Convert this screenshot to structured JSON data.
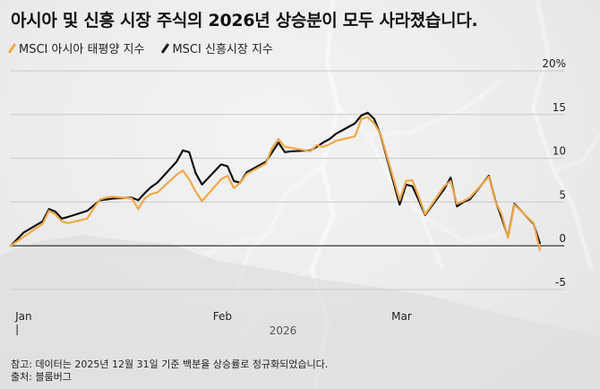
{
  "title": "아시아 및 신흥 시장 주식의 2026년 상승분이 모두 사라졌습니다.",
  "footer": {
    "note": "참고: 데이터는 2025년 12월 31일 기준 백분율 상승률로 정규화되었습니다.",
    "source": "출처: 블룸버그"
  },
  "chart_data": {
    "type": "line",
    "title": "아시아 및 신흥 시장 주식의 2026년 상승분이 모두 사라졌습니다.",
    "xlabel": "2026",
    "ylabel": "",
    "y_unit": "%",
    "ylim": [
      -5,
      20
    ],
    "yticks": [
      -5,
      0,
      5,
      10,
      15,
      20
    ],
    "ytick_labels": [
      "-5",
      "0",
      "5",
      "10",
      "15",
      "20%"
    ],
    "xlim": [
      "2025-12-31",
      "2026-03-25"
    ],
    "xticks": [
      {
        "date": "2026-01-01",
        "label": "Jan"
      },
      {
        "date": "2026-02-01",
        "label": "Feb"
      },
      {
        "date": "2026-03-01",
        "label": "Mar"
      }
    ],
    "x": [
      "2025-12-31",
      "2026-01-02",
      "2026-01-05",
      "2026-01-06",
      "2026-01-07",
      "2026-01-08",
      "2026-01-09",
      "2026-01-12",
      "2026-01-13",
      "2026-01-14",
      "2026-01-15",
      "2026-01-16",
      "2026-01-19",
      "2026-01-20",
      "2026-01-21",
      "2026-01-22",
      "2026-01-23",
      "2026-01-26",
      "2026-01-27",
      "2026-01-28",
      "2026-01-29",
      "2026-01-30",
      "2026-02-02",
      "2026-02-03",
      "2026-02-04",
      "2026-02-05",
      "2026-02-06",
      "2026-02-09",
      "2026-02-10",
      "2026-02-11",
      "2026-02-12",
      "2026-02-13",
      "2026-02-16",
      "2026-02-17",
      "2026-02-18",
      "2026-02-19",
      "2026-02-20",
      "2026-02-23",
      "2026-02-24",
      "2026-02-25",
      "2026-02-26",
      "2026-02-27",
      "2026-03-02",
      "2026-03-03",
      "2026-03-04",
      "2026-03-05",
      "2026-03-06",
      "2026-03-09",
      "2026-03-10",
      "2026-03-11",
      "2026-03-12",
      "2026-03-13",
      "2026-03-16",
      "2026-03-17",
      "2026-03-18",
      "2026-03-19",
      "2026-03-20",
      "2026-03-23",
      "2026-03-24"
    ],
    "series": [
      {
        "name": "MSCI 아시아 태평양 지수",
        "color": "#f0a848",
        "values": [
          0,
          1.0,
          2.5,
          4.0,
          3.6,
          2.8,
          2.6,
          3.1,
          4.3,
          5.3,
          5.5,
          5.6,
          5.4,
          4.2,
          5.4,
          5.9,
          6.1,
          8.1,
          8.6,
          7.6,
          6.2,
          5.1,
          7.6,
          8.0,
          6.6,
          7.2,
          8.2,
          9.4,
          11.2,
          12.2,
          11.3,
          11.2,
          10.8,
          11.5,
          11.3,
          11.6,
          12.0,
          12.5,
          14.5,
          14.7,
          14.0,
          12.8,
          5.2,
          7.4,
          7.5,
          5.6,
          3.6,
          6.8,
          7.4,
          4.8,
          5.1,
          5.5,
          7.9,
          5.1,
          3.6,
          0.9,
          4.7,
          2.6,
          -0.5
        ]
      },
      {
        "name": "MSCI 신흥시장 지수",
        "color": "#111111",
        "values": [
          0,
          1.5,
          2.8,
          4.2,
          3.9,
          3.1,
          3.3,
          4.0,
          4.6,
          5.2,
          5.3,
          5.4,
          5.5,
          5.2,
          6.0,
          6.7,
          7.2,
          9.6,
          10.9,
          10.7,
          8.3,
          7.0,
          9.3,
          9.1,
          7.4,
          7.2,
          8.4,
          9.6,
          10.7,
          11.8,
          10.7,
          10.8,
          10.9,
          11.3,
          11.8,
          12.2,
          12.8,
          14.0,
          14.9,
          15.2,
          14.5,
          12.7,
          4.7,
          7.0,
          6.8,
          5.2,
          3.5,
          6.5,
          7.8,
          4.5,
          5.0,
          5.3,
          8.0,
          5.2,
          3.2,
          1.0,
          4.8,
          2.5,
          0.3
        ]
      }
    ],
    "legend_position": "top-left",
    "grid": true
  }
}
